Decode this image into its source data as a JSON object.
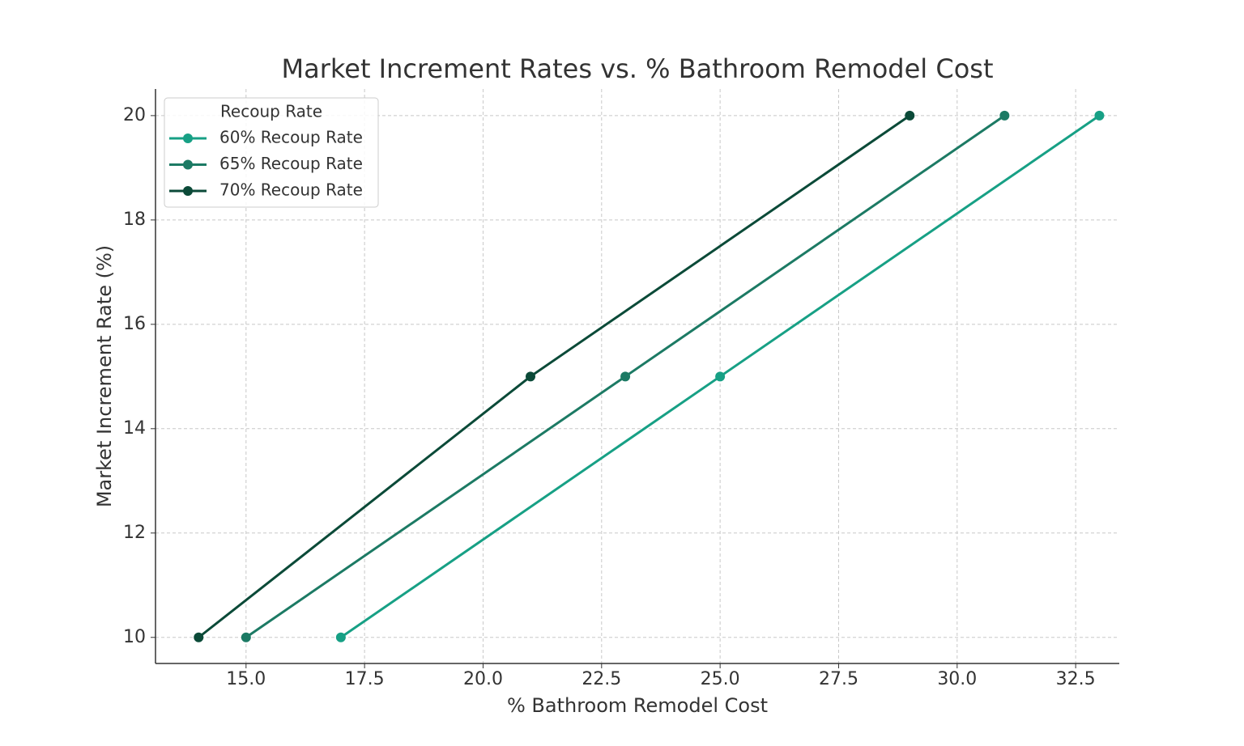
{
  "chart_data": {
    "type": "line",
    "title": "Market Increment Rates vs. % Bathroom Remodel Cost",
    "x_label": "% Bathroom Remodel Cost",
    "y_label": "Market Increment Rate (%)",
    "legend_title": "Recoup Rate",
    "legend_position": "upper left",
    "grid": true,
    "series": [
      {
        "name": "60% Recoup Rate",
        "color": "#17a085",
        "x": [
          17,
          25,
          33
        ],
        "values": [
          10,
          15,
          20
        ]
      },
      {
        "name": "65% Recoup Rate",
        "color": "#1c7a64",
        "x": [
          15,
          23,
          31
        ],
        "values": [
          10,
          15,
          20
        ]
      },
      {
        "name": "70% Recoup Rate",
        "color": "#0b4a38",
        "x": [
          14,
          21,
          29
        ],
        "values": [
          10,
          15,
          20
        ]
      }
    ],
    "xlim": [
      13.09,
      33.42
    ],
    "ylim": [
      9.5,
      20.51
    ],
    "xticks": [
      {
        "value": 15,
        "label": "15.0"
      },
      {
        "value": 17.5,
        "label": "17.5"
      },
      {
        "value": 20,
        "label": "20.0"
      },
      {
        "value": 22.5,
        "label": "22.5"
      },
      {
        "value": 25,
        "label": "25.0"
      },
      {
        "value": 27.5,
        "label": "27.5"
      },
      {
        "value": 30,
        "label": "30.0"
      },
      {
        "value": 32.5,
        "label": "32.5"
      }
    ],
    "yticks": [
      10,
      12,
      14,
      16,
      18,
      20
    ]
  }
}
